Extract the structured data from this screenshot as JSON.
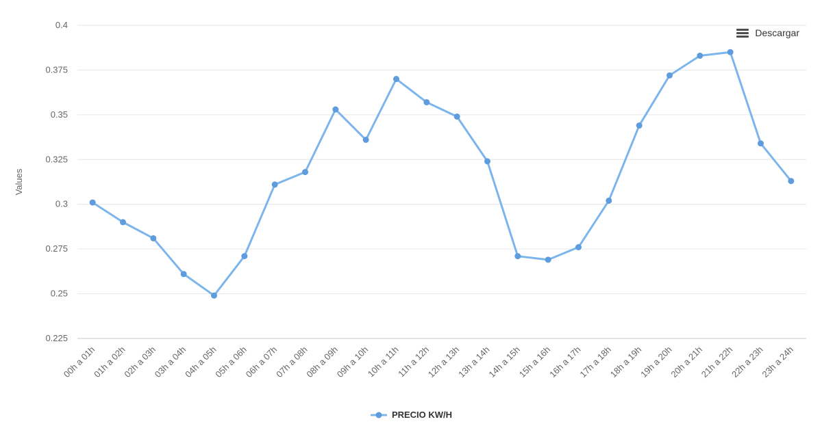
{
  "toolbar": {
    "download_label": "Descargar"
  },
  "legend": {
    "items": [
      {
        "label": "PRECIO KW/H"
      }
    ]
  },
  "chart_data": {
    "type": "line",
    "title": "",
    "xlabel": "",
    "ylabel": "Values",
    "categories": [
      "00h a 01h",
      "01h a 02h",
      "02h a 03h",
      "03h a 04h",
      "04h a 05h",
      "05h a 06h",
      "06h a 07h",
      "07h a 08h",
      "08h a 09h",
      "09h a 10h",
      "10h a 11h",
      "11h a 12h",
      "12h a 13h",
      "13h a 14h",
      "14h a 15h",
      "15h a 16h",
      "16h a 17h",
      "17h a 18h",
      "18h a 19h",
      "19h a 20h",
      "20h a 21h",
      "21h a 22h",
      "22h a 23h",
      "23h a 24h"
    ],
    "series": [
      {
        "name": "PRECIO KW/H",
        "values": [
          0.301,
          0.29,
          0.281,
          0.261,
          0.249,
          0.271,
          0.311,
          0.318,
          0.353,
          0.336,
          0.37,
          0.357,
          0.349,
          0.324,
          0.271,
          0.269,
          0.276,
          0.302,
          0.344,
          0.372,
          0.383,
          0.385,
          0.334,
          0.313
        ]
      }
    ],
    "ylim": [
      0.225,
      0.4
    ],
    "ytick_step": 0.025,
    "grid": true,
    "legend_position": "bottom",
    "colors": {
      "line": "#7cb5ec",
      "marker": "#5e9cdd",
      "axis_label": "#666666",
      "axis_title": "#666666",
      "grid": "#e6e6e6",
      "axis_line": "#c9c9c9",
      "legend_text": "#333333",
      "download_text": "#333333",
      "download_icon": "#4d4d4d"
    }
  }
}
